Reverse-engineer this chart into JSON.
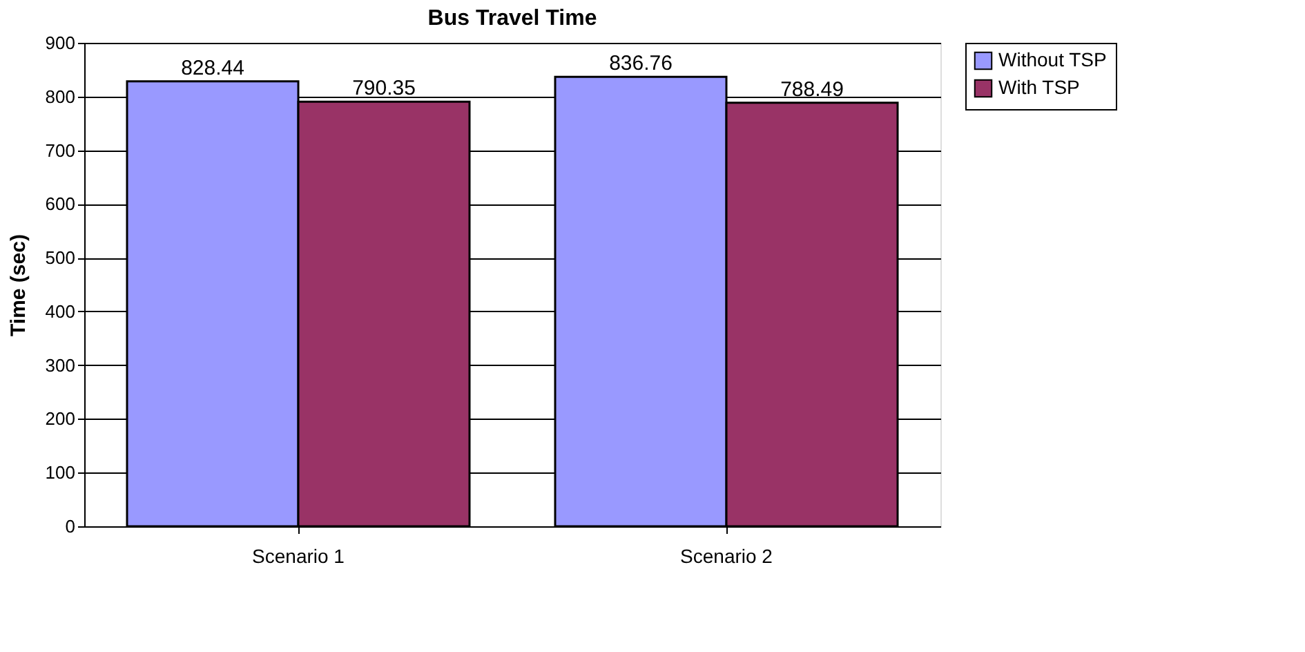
{
  "chart_data": {
    "type": "bar",
    "title": "Bus Travel Time",
    "ylabel": "Time (sec)",
    "categories": [
      "Scenario 1",
      "Scenario 2"
    ],
    "series": [
      {
        "name": "Without TSP",
        "color": "#9999ff",
        "values": [
          828.44,
          836.76
        ]
      },
      {
        "name": "With TSP",
        "color": "#993366",
        "values": [
          790.35,
          788.49
        ]
      }
    ],
    "ylim": [
      0,
      900
    ],
    "yticks": [
      0,
      100,
      200,
      300,
      400,
      500,
      600,
      700,
      800,
      900
    ],
    "grid": "y",
    "legend": "right",
    "data_labels": true
  }
}
